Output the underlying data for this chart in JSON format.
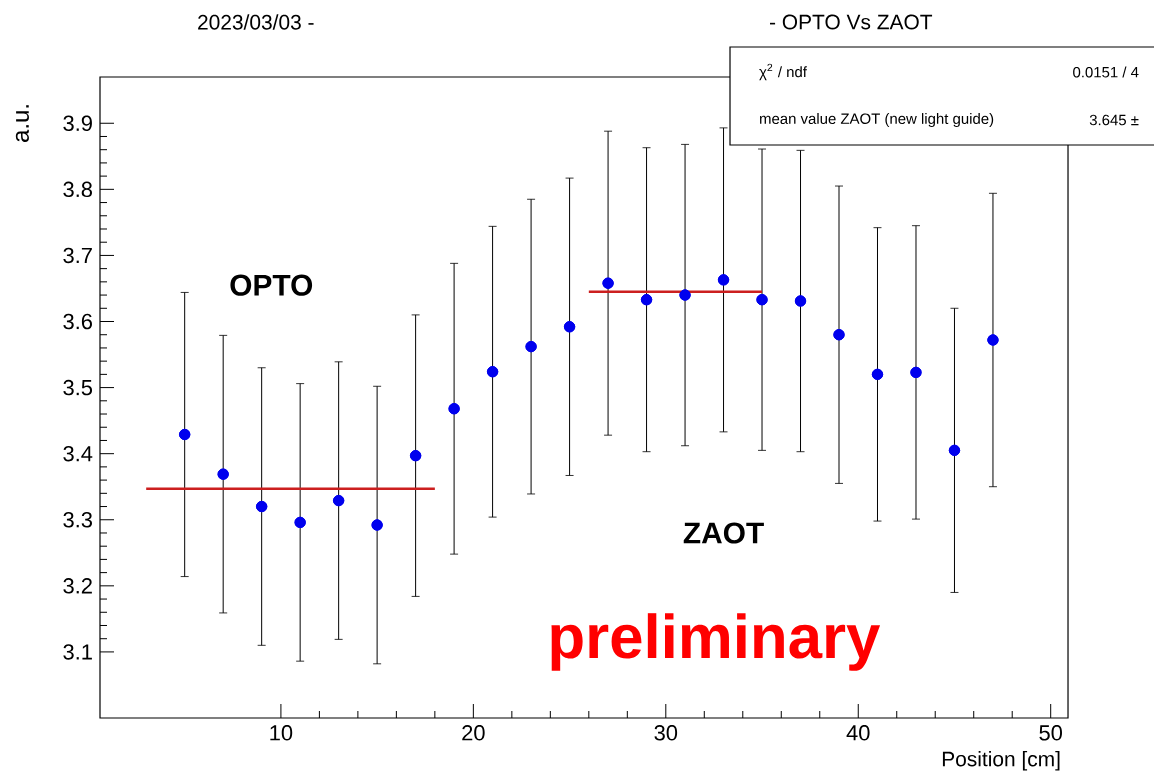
{
  "chart_data": {
    "type": "scatter",
    "title": "2023/03/03 -",
    "subtitle": "- OPTO Vs ZAOT",
    "xlabel": "Position [cm]",
    "ylabel": "a.u.",
    "x": [
      5,
      7,
      9,
      11,
      13,
      15,
      17,
      19,
      21,
      23,
      25,
      27,
      29,
      31,
      33,
      35,
      37,
      39,
      41,
      43,
      45,
      47
    ],
    "series": [
      {
        "color": "#0000ee",
        "values": [
          3.429,
          3.369,
          3.32,
          3.296,
          3.329,
          3.292,
          3.397,
          3.468,
          3.524,
          3.562,
          3.592,
          3.658,
          3.633,
          3.64,
          3.663,
          3.633,
          3.631,
          3.58,
          3.52,
          3.523,
          3.405,
          3.572
        ],
        "errors": [
          0.215,
          0.21,
          0.21,
          0.21,
          0.21,
          0.21,
          0.213,
          0.22,
          0.22,
          0.223,
          0.225,
          0.23,
          0.23,
          0.228,
          0.23,
          0.228,
          0.228,
          0.225,
          0.222,
          0.222,
          0.215,
          0.222
        ]
      },
      {
        "type": "line",
        "color": "#cc1f1f",
        "marker": "none",
        "x": [
          3.0,
          18.0
        ],
        "values": [
          3.347,
          3.347
        ]
      },
      {
        "type": "line",
        "color": "#cc1f1f",
        "marker": "none",
        "x": [
          26.0,
          35.0
        ],
        "values": [
          3.645,
          3.645
        ]
      }
    ],
    "marker": "circle",
    "xlim": [
      0.6,
      50.9
    ],
    "ylim": [
      3.0,
      3.97
    ],
    "xticks": [
      10,
      20,
      30,
      40,
      50
    ],
    "yticks": [
      3.1,
      3.2,
      3.3,
      3.4,
      3.5,
      3.6,
      3.7,
      3.8,
      3.9
    ],
    "annotations": [
      "OPTO",
      "ZAOT",
      "preliminary",
      "χ$^{2}$ / ndf",
      "0.0151 / 4",
      "mean value ZAOT (new light guide)",
      "3.645 ±"
    ]
  }
}
